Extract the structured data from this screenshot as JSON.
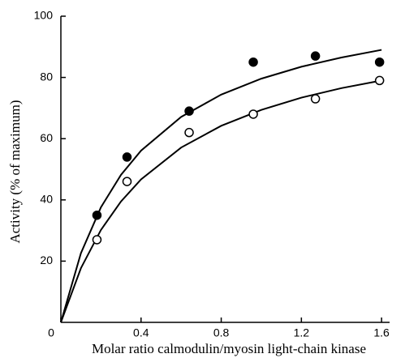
{
  "chart_data": {
    "type": "scatter",
    "x_label": "Molar ratio calmodulin/myosin light-chain kinase",
    "y_label": "Activity (% of maximum)",
    "xlim": [
      0,
      1.64
    ],
    "xticks": [
      0,
      0.4,
      0.8,
      1.2,
      1.6
    ],
    "ylim": [
      0,
      100
    ],
    "yticks": [
      20,
      40,
      60,
      80,
      100
    ],
    "series": [
      {
        "color": "#000000",
        "filled": true,
        "x": [
          0.18,
          0.33,
          0.64,
          0.96,
          1.27,
          1.59
        ],
        "values": [
          35,
          54,
          69,
          85,
          87,
          85
        ]
      },
      {
        "color": "#000000",
        "filled": false,
        "x": [
          0.18,
          0.33,
          0.64,
          0.96,
          1.27,
          1.59
        ],
        "values": [
          27,
          46,
          62,
          68,
          73,
          79
        ]
      }
    ],
    "curves": [
      {
        "color": "#000000",
        "x": [
          0,
          0.1,
          0.2,
          0.3,
          0.4,
          0.6,
          0.8,
          1.0,
          1.2,
          1.4,
          1.6
        ],
        "values": [
          0,
          22.6,
          37.6,
          48.2,
          56.1,
          67.1,
          74.4,
          79.6,
          83.5,
          86.5,
          89.0
        ]
      },
      {
        "color": "#000000",
        "x": [
          0,
          0.1,
          0.2,
          0.3,
          0.4,
          0.6,
          0.8,
          1.0,
          1.2,
          1.4,
          1.6
        ],
        "values": [
          0,
          17.7,
          30.2,
          39.5,
          46.7,
          57.1,
          64.2,
          69.4,
          73.4,
          76.5,
          79.0
        ]
      }
    ]
  }
}
